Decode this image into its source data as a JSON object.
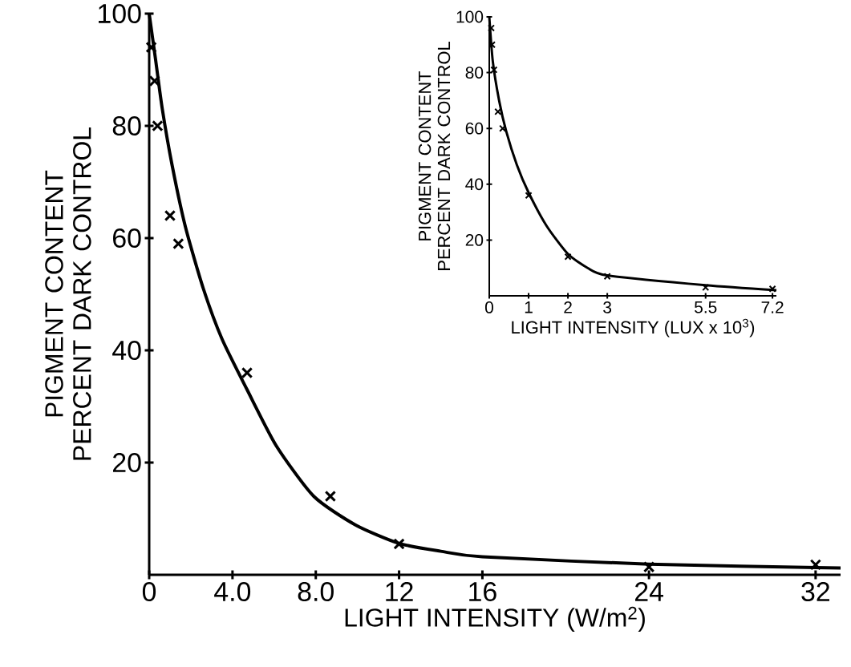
{
  "chart_data": [
    {
      "type": "scatter",
      "xlabel": "LIGHT INTENSITY (W/m$^{2}$)",
      "ylabel": "PIGMENT CONTENT PERCENT DARK CONTROL",
      "marker": "cross",
      "xlim": [
        0,
        33.2
      ],
      "ylim": [
        0,
        100
      ],
      "xticks": [
        0,
        {
          "value": 4,
          "label": "4.0"
        },
        {
          "value": 8,
          "label": "8.0"
        },
        12,
        16,
        24,
        32
      ],
      "yticks": [
        20,
        40,
        60,
        80,
        100
      ],
      "series": [
        {
          "color": "#000000",
          "x": [
            0.1,
            0.26,
            0.4,
            1.0,
            1.4,
            4.7,
            8.7,
            12,
            24,
            32
          ],
          "values": [
            94,
            88,
            80,
            64,
            59,
            36,
            14,
            5.5,
            1.4,
            1.8
          ]
        },
        {
          "type": "line",
          "color": "#000000",
          "marker": "none",
          "line_style": "solid",
          "x": [
            0,
            0.3,
            0.63,
            1.1,
            1.74,
            2.6,
            3.5,
            4.7,
            6.1,
            7.9,
            9.9,
            12,
            14,
            16,
            24,
            33.2
          ],
          "values": [
            100,
            92,
            83,
            73,
            62,
            51,
            42,
            33,
            23,
            14,
            8.9,
            5.6,
            4.2,
            3.2,
            1.9,
            1.2
          ]
        }
      ]
    },
    {
      "type": "scatter",
      "xlabel": "LIGHT INTENSITY (LUX x 10$^{3}$)",
      "ylabel": "PIGMENT CONTENT PERCENT DARK CONTROL",
      "marker": "cross",
      "xlim": [
        0,
        7.3
      ],
      "ylim": [
        0,
        100
      ],
      "xticks": [
        0,
        1,
        2,
        3,
        5.5,
        7.2
      ],
      "yticks": [
        20,
        40,
        60,
        80,
        100
      ],
      "series": [
        {
          "color": "#000000",
          "x": [
            0.05,
            0.07,
            0.12,
            0.22,
            0.34,
            1,
            2,
            3,
            5.5,
            7.2
          ],
          "values": [
            96,
            90,
            81,
            66,
            60,
            36,
            14,
            7,
            3,
            2.5
          ]
        },
        {
          "type": "line",
          "color": "#000000",
          "marker": "none",
          "line_style": "solid",
          "x": [
            0,
            0.09,
            0.25,
            0.43,
            0.7,
            1,
            1.46,
            2,
            2.5,
            3,
            5.5,
            7.3
          ],
          "values": [
            100,
            84,
            70,
            59,
            47,
            37,
            25,
            15,
            10,
            7.3,
            3.8,
            2
          ]
        }
      ]
    }
  ]
}
